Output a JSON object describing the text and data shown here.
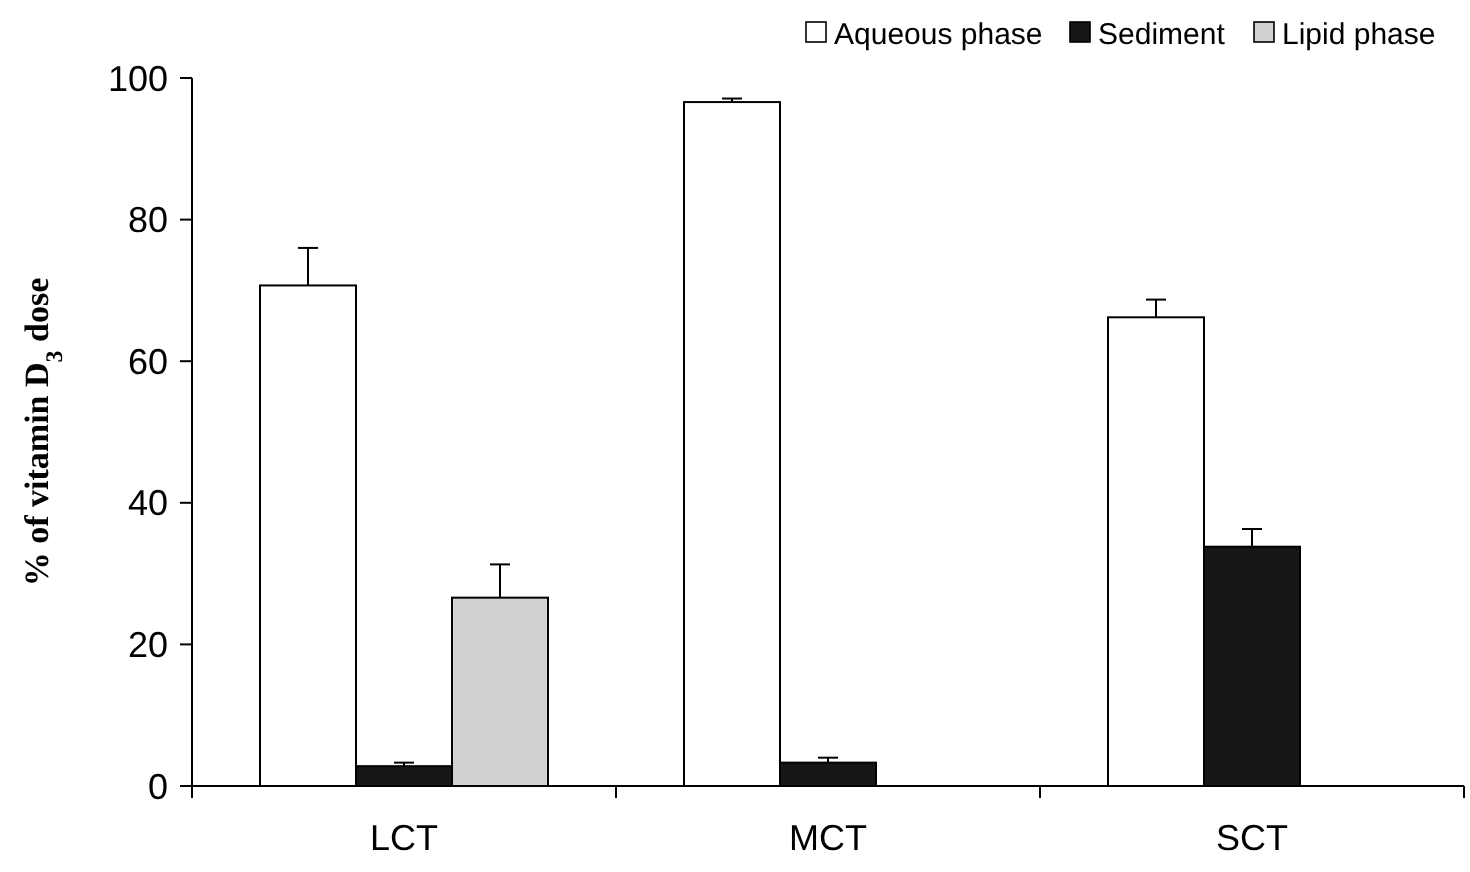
{
  "chart_data": {
    "type": "bar",
    "ylabel": "% of vitamin D$_{3}$ dose",
    "categories": [
      "LCT",
      "MCT",
      "SCT"
    ],
    "series": [
      {
        "name": "Aqueous phase",
        "color": "#ffffff",
        "values": [
          70.7,
          96.6,
          66.2
        ],
        "errors": [
          5.3,
          0.5,
          2.5
        ]
      },
      {
        "name": "Sediment",
        "color": "#161616",
        "values": [
          2.8,
          3.3,
          33.8
        ],
        "errors": [
          0.5,
          0.7,
          2.5
        ]
      },
      {
        "name": "Lipid phase",
        "color": "#d0d1d3",
        "values": [
          26.6,
          0,
          0
        ],
        "errors": [
          4.7,
          null,
          null
        ]
      }
    ],
    "ylim": [
      0,
      100
    ],
    "yticks": [
      0,
      20,
      40,
      60,
      80,
      100
    ],
    "legend": "top right",
    "grid": false
  }
}
